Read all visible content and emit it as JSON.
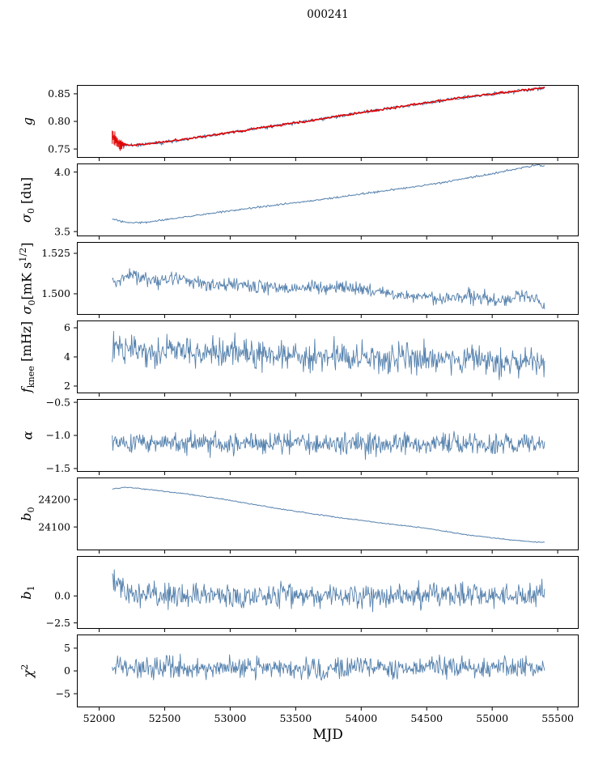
{
  "title": "000241",
  "chart_data": {
    "type": "line",
    "title": "000241",
    "xlabel": "MJD",
    "xlim": [
      51830,
      55660
    ],
    "x_range": [
      52100,
      55400
    ],
    "xticks": [
      52000,
      52500,
      53000,
      53500,
      54000,
      54500,
      55000,
      55500
    ],
    "xtick_labels": [
      "52000",
      "52500",
      "53000",
      "53500",
      "54000",
      "54500",
      "55000",
      "55500"
    ],
    "colors": {
      "data_line": "#5581ad",
      "model_line": "#e00000",
      "axis": "#000000"
    },
    "panels": [
      {
        "ylabel": [
          {
            "t": "g",
            "i": 1
          }
        ],
        "ylim": [
          0.734,
          0.866
        ],
        "yticks": [
          0.75,
          0.8,
          0.85
        ],
        "ytick_labels": [
          "0.75",
          "0.80",
          "0.85"
        ],
        "series": [
          {
            "name": "gain-data",
            "color": "#5581ad",
            "lw": 1,
            "noise": 0.0017,
            "seed": 21,
            "n": 520,
            "ax": [
              52100,
              52160,
              52280,
              52500,
              52800,
              53200,
              53600,
              54000,
              54400,
              54800,
              55100,
              55400
            ],
            "ay": [
              0.772,
              0.7585,
              0.7565,
              0.7625,
              0.7725,
              0.7868,
              0.8008,
              0.8158,
              0.8302,
              0.8438,
              0.8525,
              0.8608
            ]
          },
          {
            "name": "gain-model",
            "color": "#e00000",
            "lw": 1.5,
            "noise": 0.0009,
            "seed": 22,
            "n": 520,
            "ax": [
              52100,
              52160,
              52280,
              52500,
              52800,
              53200,
              53600,
              54000,
              54400,
              54800,
              55100,
              55400
            ],
            "ay": [
              0.7735,
              0.759,
              0.757,
              0.7628,
              0.7727,
              0.787,
              0.801,
              0.816,
              0.8304,
              0.844,
              0.8527,
              0.861
            ],
            "errbar": {
              "x_end": 52200,
              "amp": 0.0135,
              "count": 16
            }
          }
        ]
      },
      {
        "ylabel": [
          {
            "t": "σ",
            "i": 1
          },
          {
            "t": "0",
            "sub": 1
          },
          {
            "t": " [du]"
          }
        ],
        "ylim": [
          3.46,
          4.072
        ],
        "yticks": [
          3.5,
          4.0
        ],
        "ytick_labels": [
          "3.5",
          "4.0"
        ],
        "series": [
          {
            "name": "sigma0-du",
            "color": "#5581ad",
            "lw": 1,
            "noise": 0.004,
            "seed": 31,
            "n": 520,
            "ax": [
              52100,
              52200,
              52350,
              52600,
              52900,
              53300,
              53700,
              54100,
              54500,
              54900,
              55200,
              55350,
              55400
            ],
            "ay": [
              3.605,
              3.575,
              3.578,
              3.615,
              3.66,
              3.715,
              3.77,
              3.83,
              3.89,
              3.965,
              4.03,
              4.062,
              4.055
            ]
          }
        ]
      },
      {
        "ylabel": [
          {
            "t": "σ",
            "i": 1
          },
          {
            "t": "0",
            "sub": 1
          },
          {
            "t": "[mK s"
          },
          {
            "t": "1/2",
            "sup": 1
          },
          {
            "t": "]"
          }
        ],
        "ylim": [
          1.487,
          1.532
        ],
        "yticks": [
          1.5,
          1.525
        ],
        "ytick_labels": [
          "1.500",
          "1.525"
        ],
        "series": [
          {
            "name": "sigma0-mk",
            "color": "#5581ad",
            "lw": 0.9,
            "noise": 0.0021,
            "seed": 41,
            "n": 650,
            "ax": [
              52100,
              52250,
              52400,
              52600,
              52900,
              53100,
              53400,
              53700,
              54000,
              54300,
              54600,
              54900,
              55100,
              55250,
              55400
            ],
            "ay": [
              1.507,
              1.512,
              1.508,
              1.509,
              1.505,
              1.5055,
              1.503,
              1.5045,
              1.503,
              1.499,
              1.4975,
              1.4985,
              1.4955,
              1.5005,
              1.492
            ]
          }
        ]
      },
      {
        "ylabel": [
          {
            "t": "f",
            "i": 1
          },
          {
            "t": "knee",
            "sub": 1
          },
          {
            "t": " [mHz]"
          }
        ],
        "ylim": [
          1.5,
          6.5
        ],
        "yticks": [
          2,
          4,
          6
        ],
        "ytick_labels": [
          "2",
          "4",
          "6"
        ],
        "series": [
          {
            "name": "fknee",
            "color": "#5581ad",
            "lw": 0.9,
            "noise": 0.5,
            "seed": 51,
            "n": 650,
            "ax": [
              52100,
              52400,
              52800,
              53200,
              53600,
              54000,
              54400,
              54800,
              55200,
              55400
            ],
            "ay": [
              4.75,
              4.45,
              4.35,
              4.15,
              4.0,
              3.95,
              3.85,
              3.8,
              3.7,
              3.65
            ]
          }
        ]
      },
      {
        "ylabel": [
          {
            "t": "α",
            "i": 1
          }
        ],
        "ylim": [
          -1.55,
          -0.45
        ],
        "yticks": [
          -1.5,
          -1.0,
          -0.5
        ],
        "ytick_labels": [
          "−1.5",
          "−1.0",
          "−0.5"
        ],
        "series": [
          {
            "name": "alpha",
            "color": "#5581ad",
            "lw": 0.9,
            "noise": 0.08,
            "seed": 61,
            "n": 650,
            "ax": [
              52100,
              55400
            ],
            "ay": [
              -1.12,
              -1.13
            ]
          }
        ]
      },
      {
        "ylabel": [
          {
            "t": "b",
            "i": 1
          },
          {
            "t": "0",
            "sub": 1
          }
        ],
        "ylim": [
          24015,
          24280
        ],
        "yticks": [
          24100,
          24200
        ],
        "ytick_labels": [
          "24100",
          "24200"
        ],
        "series": [
          {
            "name": "b0",
            "color": "#5581ad",
            "lw": 1,
            "noise": 0.9,
            "seed": 71,
            "n": 450,
            "ax": [
              52100,
              52200,
              52400,
              52700,
              53000,
              53300,
              53600,
              53900,
              54200,
              54500,
              54800,
              55100,
              55300,
              55400
            ],
            "ay": [
              24238,
              24245,
              24235,
              24218,
              24197,
              24172,
              24150,
              24130,
              24112,
              24095,
              24072,
              24055,
              24046,
              24044
            ]
          }
        ]
      },
      {
        "ylabel": [
          {
            "t": "b",
            "i": 1
          },
          {
            "t": "1",
            "sub": 1
          }
        ],
        "ylim": [
          -3.05,
          3.7
        ],
        "yticks": [
          -2.5,
          0.0
        ],
        "ytick_labels": [
          "−2.5",
          "0.0"
        ],
        "series": [
          {
            "name": "b1",
            "color": "#5581ad",
            "lw": 0.9,
            "noise": 0.55,
            "seed": 81,
            "n": 650,
            "ax": [
              52100,
              52135,
              52185,
              52260,
              52400,
              53000,
              55400
            ],
            "ay": [
              2.0,
              1.25,
              0.6,
              0.25,
              0.05,
              0.0,
              0.0
            ]
          }
        ]
      },
      {
        "ylabel": [
          {
            "t": "χ",
            "i": 1
          },
          {
            "t": "2",
            "sup": 1
          }
        ],
        "ylim": [
          -8,
          8
        ],
        "yticks": [
          -5,
          0,
          5
        ],
        "ytick_labels": [
          "−5",
          "0",
          "5"
        ],
        "series": [
          {
            "name": "chi2",
            "color": "#5581ad",
            "lw": 0.9,
            "noise": 1.15,
            "seed": 91,
            "n": 650,
            "ax": [
              52100,
              55400
            ],
            "ay": [
              0.7,
              0.7
            ]
          }
        ]
      }
    ]
  }
}
